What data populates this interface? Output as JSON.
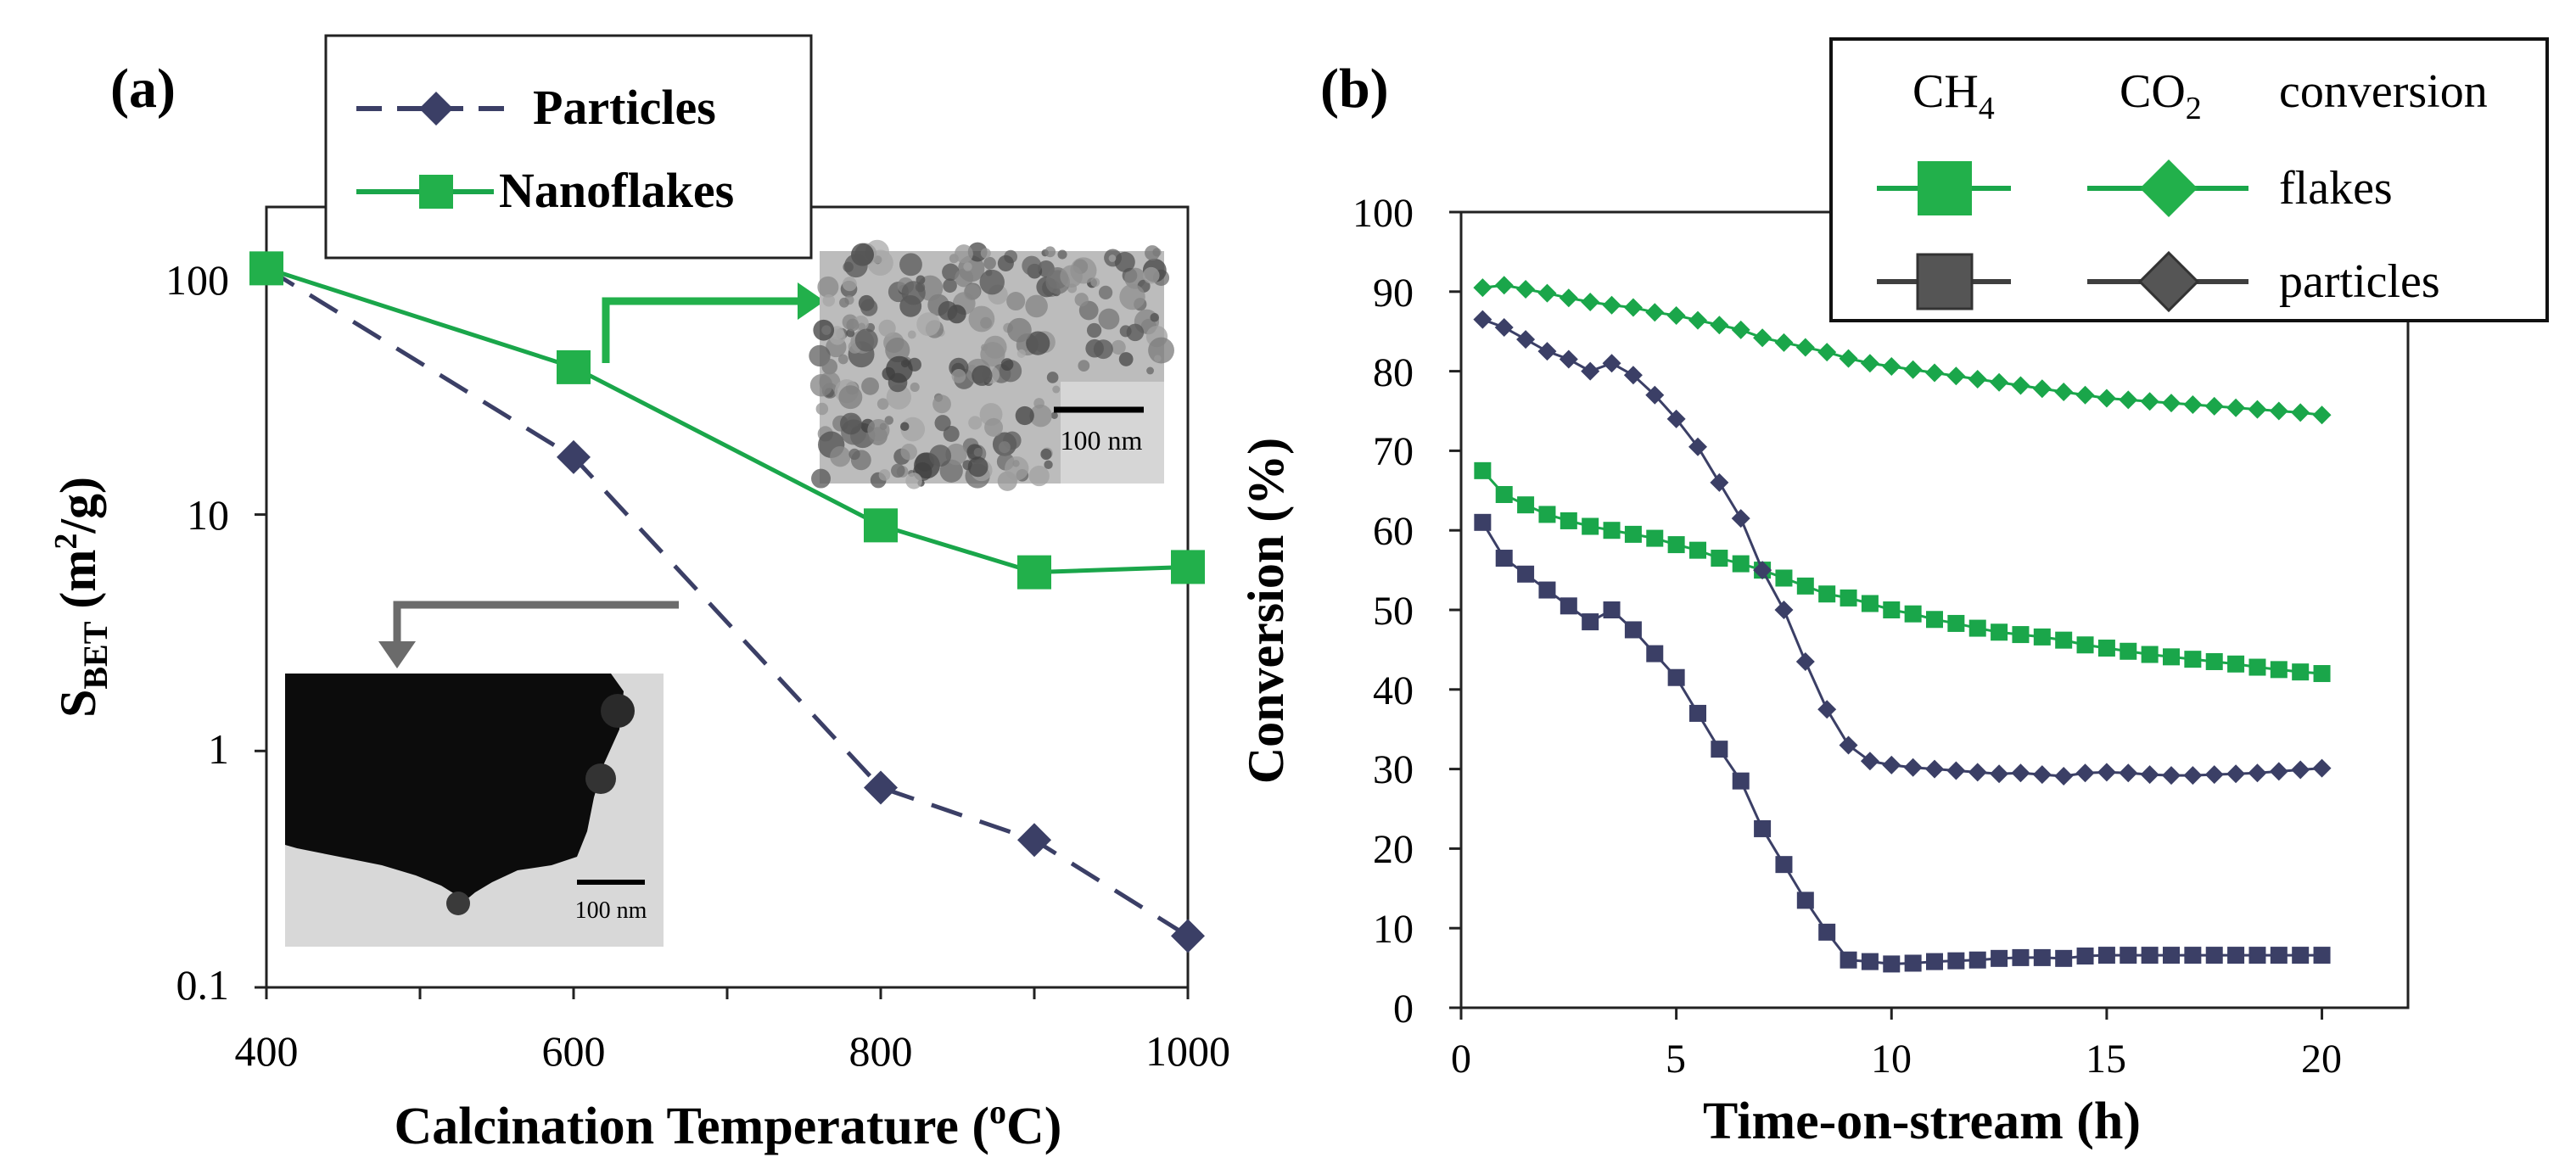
{
  "colors": {
    "green": "#1aa64a",
    "green_fill": "#22b04b",
    "navy": "#3b3f66",
    "dark_gray": "#3f3f3f",
    "arrow_gray": "#6b6b6b",
    "axis": "#222222"
  },
  "panel_a": {
    "label": "(a)",
    "xlabel": "Calcination Temperature (",
    "xlabel_sup": "o",
    "xlabel_tail": "C)",
    "ylabel_main": "S",
    "ylabel_sub": "BET",
    "ylabel_unit": " (m",
    "ylabel_unit_sup": "2",
    "ylabel_unit_tail": "/g)",
    "legend": {
      "particles": "Particles",
      "nanoflakes": "Nanoflakes"
    },
    "inset_top": {
      "scale_label": "100 nm"
    },
    "inset_bottom": {
      "scale_label": "100 nm"
    }
  },
  "panel_b": {
    "label": "(b)",
    "xlabel": "Time-on-stream (h)",
    "ylabel": "Conversion (%)",
    "legend": {
      "ch4": "CH",
      "ch4_sub": "4",
      "co2": "CO",
      "co2_sub": "2",
      "conversion": "conversion",
      "flakes": "flakes",
      "particles": "particles"
    }
  },
  "chart_data": [
    {
      "id": "a",
      "type": "line",
      "scale": "log",
      "title": "",
      "xlabel": "Calcination Temperature (oC)",
      "ylabel": "SBET (m2/g)",
      "xlim": [
        400,
        1000
      ],
      "ylim": [
        0.1,
        200
      ],
      "x_ticks": [
        400,
        600,
        800,
        1000
      ],
      "y_ticks": [
        0.1,
        1,
        10,
        100
      ],
      "y_tick_labels": [
        "0.1",
        "1",
        "10",
        "100"
      ],
      "series": [
        {
          "name": "Particles",
          "style": "dashed",
          "marker": "diamond",
          "color": "#3b3f66",
          "x": [
            400,
            600,
            800,
            900,
            1000
          ],
          "y": [
            110,
            17.5,
            0.7,
            0.42,
            0.165
          ]
        },
        {
          "name": "Nanoflakes",
          "style": "solid",
          "marker": "square",
          "color": "#1aa64a",
          "x": [
            400,
            600,
            800,
            900,
            1000
          ],
          "y": [
            110,
            42,
            9,
            5.7,
            6.0
          ]
        }
      ]
    },
    {
      "id": "b",
      "type": "line",
      "title": "",
      "xlabel": "Time-on-stream (h)",
      "ylabel": "Conversion (%)",
      "xlim": [
        0,
        22
      ],
      "ylim": [
        0,
        100
      ],
      "x_ticks": [
        0,
        5,
        10,
        15,
        20
      ],
      "y_ticks": [
        0,
        10,
        20,
        30,
        40,
        50,
        60,
        70,
        80,
        90,
        100
      ],
      "series": [
        {
          "name": "CO2 flakes",
          "marker": "diamond",
          "color": "#1aa64a",
          "x": [
            0.5,
            1,
            1.5,
            2,
            2.5,
            3,
            3.5,
            4,
            4.5,
            5,
            5.5,
            6,
            6.5,
            7,
            7.5,
            8,
            8.5,
            9,
            9.5,
            10,
            10.5,
            11,
            11.5,
            12,
            12.5,
            13,
            13.5,
            14,
            14.5,
            15,
            15.5,
            16,
            16.5,
            17,
            17.5,
            18,
            18.5,
            19,
            19.5,
            20
          ],
          "y": [
            90.5,
            90.8,
            90.3,
            89.8,
            89.2,
            88.7,
            88.3,
            88,
            87.4,
            87,
            86.4,
            85.8,
            85.2,
            84.2,
            83.6,
            83,
            82.4,
            81.6,
            81,
            80.6,
            80.2,
            79.8,
            79.4,
            79,
            78.6,
            78.2,
            77.8,
            77.4,
            77,
            76.6,
            76.4,
            76.2,
            76,
            75.8,
            75.6,
            75.4,
            75.2,
            75,
            74.8,
            74.5
          ]
        },
        {
          "name": "CH4 flakes",
          "marker": "square",
          "color": "#1aa64a",
          "x": [
            0.5,
            1,
            1.5,
            2,
            2.5,
            3,
            3.5,
            4,
            4.5,
            5,
            5.5,
            6,
            6.5,
            7,
            7.5,
            8,
            8.5,
            9,
            9.5,
            10,
            10.5,
            11,
            11.5,
            12,
            12.5,
            13,
            13.5,
            14,
            14.5,
            15,
            15.5,
            16,
            16.5,
            17,
            17.5,
            18,
            18.5,
            19,
            19.5,
            20
          ],
          "y": [
            67.5,
            64.5,
            63.2,
            62,
            61.2,
            60.5,
            60,
            59.5,
            59,
            58.2,
            57.5,
            56.5,
            55.8,
            55,
            54,
            53,
            52,
            51.5,
            50.8,
            50,
            49.5,
            48.8,
            48.3,
            47.7,
            47.2,
            46.9,
            46.6,
            46.2,
            45.6,
            45.2,
            44.8,
            44.4,
            44.1,
            43.8,
            43.5,
            43.2,
            42.8,
            42.5,
            42.2,
            42
          ]
        },
        {
          "name": "CO2 particles",
          "marker": "diamond",
          "color": "#3b3f66",
          "x": [
            0.5,
            1,
            1.5,
            2,
            2.5,
            3,
            3.5,
            4,
            4.5,
            5,
            5.5,
            6,
            6.5,
            7,
            7.5,
            8,
            8.5,
            9,
            9.5,
            10,
            10.5,
            11,
            11.5,
            12,
            12.5,
            13,
            13.5,
            14,
            14.5,
            15,
            15.5,
            16,
            16.5,
            17,
            17.5,
            18,
            18.5,
            19,
            19.5,
            20
          ],
          "y": [
            86.5,
            85.5,
            84,
            82.5,
            81.5,
            80,
            81,
            79.5,
            77,
            74,
            70.5,
            66,
            61.5,
            55,
            50,
            43.5,
            37.5,
            33,
            31,
            30.5,
            30.2,
            30,
            29.8,
            29.6,
            29.4,
            29.5,
            29.3,
            29.1,
            29.5,
            29.6,
            29.5,
            29.3,
            29.2,
            29.2,
            29.3,
            29.4,
            29.5,
            29.7,
            29.9,
            30.1
          ]
        },
        {
          "name": "CH4 particles",
          "marker": "square",
          "color": "#3b3f66",
          "x": [
            0.5,
            1,
            1.5,
            2,
            2.5,
            3,
            3.5,
            4,
            4.5,
            5,
            5.5,
            6,
            6.5,
            7,
            7.5,
            8,
            8.5,
            9,
            9.5,
            10,
            10.5,
            11,
            11.5,
            12,
            12.5,
            13,
            13.5,
            14,
            14.5,
            15,
            15.5,
            16,
            16.5,
            17,
            17.5,
            18,
            18.5,
            19,
            19.5,
            20
          ],
          "y": [
            61,
            56.5,
            54.5,
            52.5,
            50.5,
            48.5,
            50,
            47.5,
            44.5,
            41.5,
            37,
            32.5,
            28.5,
            22.5,
            18,
            13.5,
            9.5,
            6,
            5.8,
            5.5,
            5.6,
            5.8,
            5.9,
            6,
            6.2,
            6.3,
            6.3,
            6.2,
            6.5,
            6.6,
            6.6,
            6.6,
            6.6,
            6.6,
            6.6,
            6.6,
            6.6,
            6.6,
            6.6,
            6.6
          ]
        }
      ]
    }
  ]
}
